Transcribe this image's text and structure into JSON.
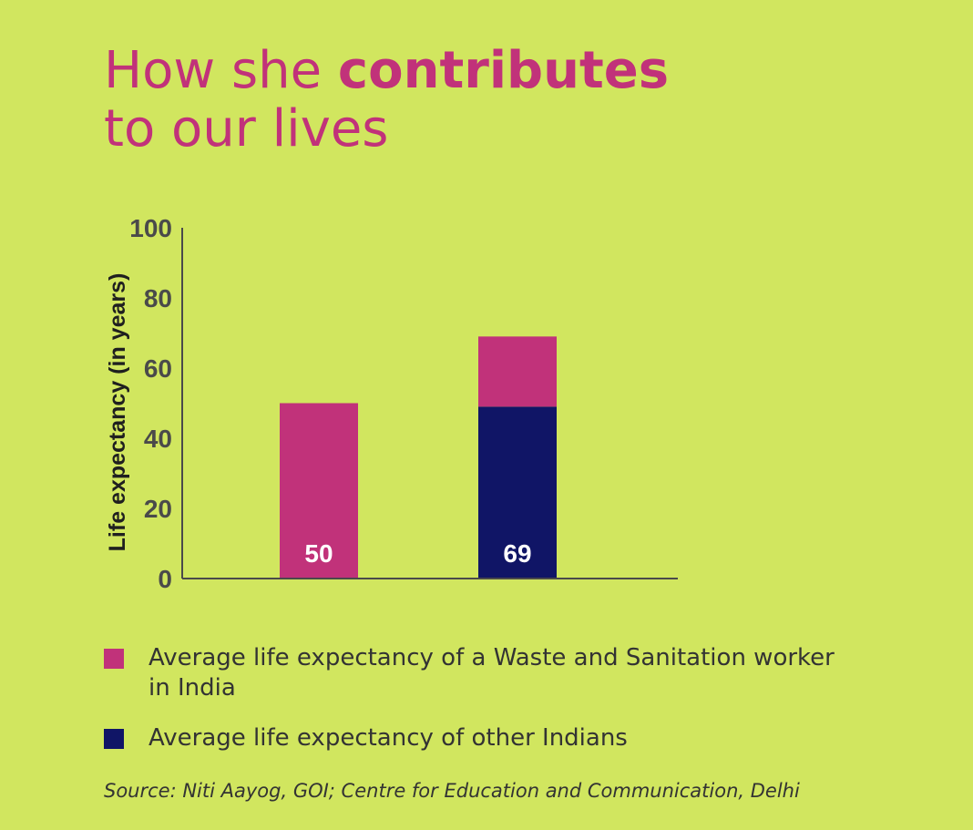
{
  "title": {
    "line1_pre": "How she ",
    "line1_bold": "contributes",
    "line2": "to our lives"
  },
  "chart_data": {
    "type": "bar",
    "stacked": true,
    "categories": [
      "",
      ""
    ],
    "series": [
      {
        "name": "Average life expectancy of a Waste and Sanitation worker in India",
        "color": "#c1327a",
        "values": [
          50,
          20
        ]
      },
      {
        "name": "Average life expectancy of other Indians",
        "color": "#101566",
        "values": [
          0,
          49
        ]
      }
    ],
    "data_labels": [
      "50",
      "69"
    ],
    "ylabel": "Life expectancy (in years)",
    "ylim": [
      0,
      100
    ],
    "yticks": [
      "0",
      "20",
      "40",
      "60",
      "80",
      "100"
    ],
    "grid": false
  },
  "legend": [
    {
      "label": "Average life expectancy of a Waste and Sanitation worker in India",
      "color": "#c1327a"
    },
    {
      "label": "Average life expectancy of other Indians",
      "color": "#101566"
    }
  ],
  "source": "Source: Niti Aayog, GOI; Centre for Education and Communication, Delhi"
}
